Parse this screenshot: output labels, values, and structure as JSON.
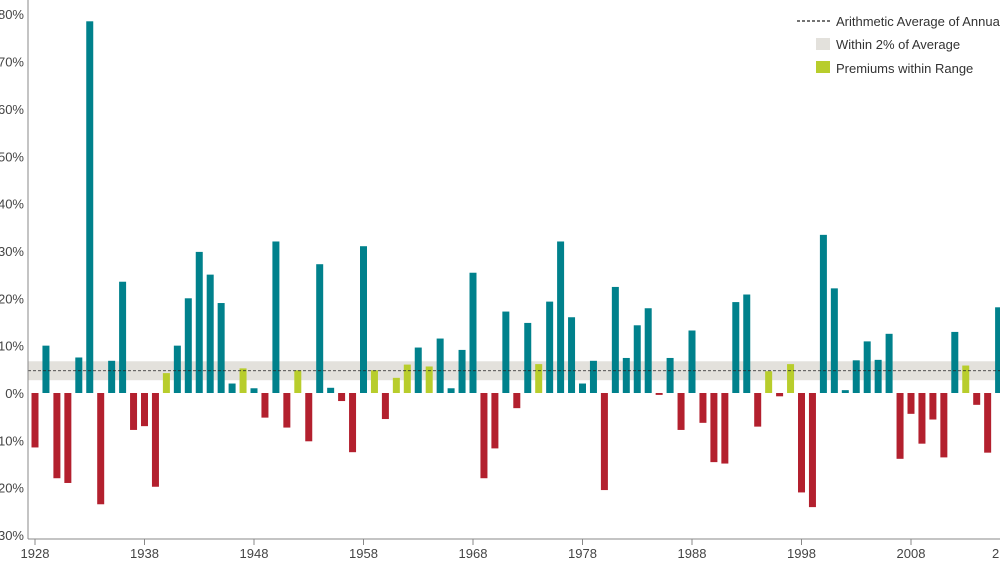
{
  "chart_data": {
    "type": "bar",
    "x": [
      1928,
      1929,
      1930,
      1931,
      1932,
      1933,
      1934,
      1935,
      1936,
      1937,
      1938,
      1939,
      1940,
      1941,
      1942,
      1943,
      1944,
      1945,
      1946,
      1947,
      1948,
      1949,
      1950,
      1951,
      1952,
      1953,
      1954,
      1955,
      1956,
      1957,
      1958,
      1959,
      1960,
      1961,
      1962,
      1963,
      1964,
      1965,
      1966,
      1967,
      1968,
      1969,
      1970,
      1971,
      1972,
      1973,
      1974,
      1975,
      1976,
      1977,
      1978,
      1979,
      1980,
      1981,
      1982,
      1983,
      1984,
      1985,
      1986,
      1987,
      1988,
      1989,
      1990,
      1991,
      1992,
      1993,
      1994,
      1995,
      1996,
      1997,
      1998,
      1999,
      2000,
      2001,
      2002,
      2003,
      2004,
      2005,
      2006,
      2007,
      2008,
      2009,
      2010,
      2011,
      2012,
      2013,
      2014,
      2015,
      2016
    ],
    "values": [
      -11.5,
      10.0,
      -18.0,
      -19.0,
      7.5,
      78.5,
      -23.5,
      6.8,
      23.5,
      -7.8,
      -7.0,
      -19.8,
      4.2,
      10.0,
      20.0,
      29.8,
      25.0,
      19.0,
      2.0,
      5.2,
      1.0,
      -5.2,
      32.0,
      -7.3,
      4.8,
      -10.2,
      27.2,
      1.1,
      -1.7,
      -12.5,
      31.0,
      4.8,
      -5.5,
      3.2,
      6.0,
      9.6,
      5.6,
      11.5,
      1.0,
      9.1,
      25.4,
      -18.0,
      -11.7,
      17.2,
      -3.2,
      14.8,
      6.1,
      19.3,
      32.0,
      16.0,
      2.0,
      6.8,
      -20.5,
      22.4,
      7.4,
      14.3,
      17.9,
      -0.4,
      7.4,
      -7.8,
      13.2,
      -6.3,
      -14.6,
      -14.9,
      19.2,
      20.8,
      -7.1,
      4.6,
      -0.7,
      6.1,
      -21.0,
      -24.1,
      33.4,
      22.1,
      0.6,
      6.9,
      10.9,
      7.0,
      12.5,
      -13.9,
      -4.4,
      -10.7,
      -5.6,
      -13.6,
      12.9,
      5.8,
      -2.5,
      -12.6,
      18.1
    ],
    "categories_shown": [
      "1928",
      "1938",
      "1948",
      "1958",
      "1968",
      "1978",
      "1988",
      "1998",
      "2008",
      "2"
    ],
    "y_tick_labels": [
      "-30%",
      "-20%",
      "-10%",
      "0%",
      "10%",
      "20%",
      "30%",
      "40%",
      "50%",
      "60%",
      "70%",
      "80%"
    ],
    "ylim": [
      -30,
      80
    ],
    "average": 4.7,
    "band": [
      2.7,
      6.7
    ],
    "grid": false,
    "legend": {
      "placement": "top-right",
      "entries": [
        "Arithmetic Average of Annual F",
        "Within 2% of Average",
        "Premiums within Range"
      ]
    },
    "colors": {
      "positive": "#00818c",
      "negative": "#b3202e",
      "in_range": "#b8cd2c",
      "band": "#e3e1dc",
      "average_line": "#222222"
    }
  }
}
